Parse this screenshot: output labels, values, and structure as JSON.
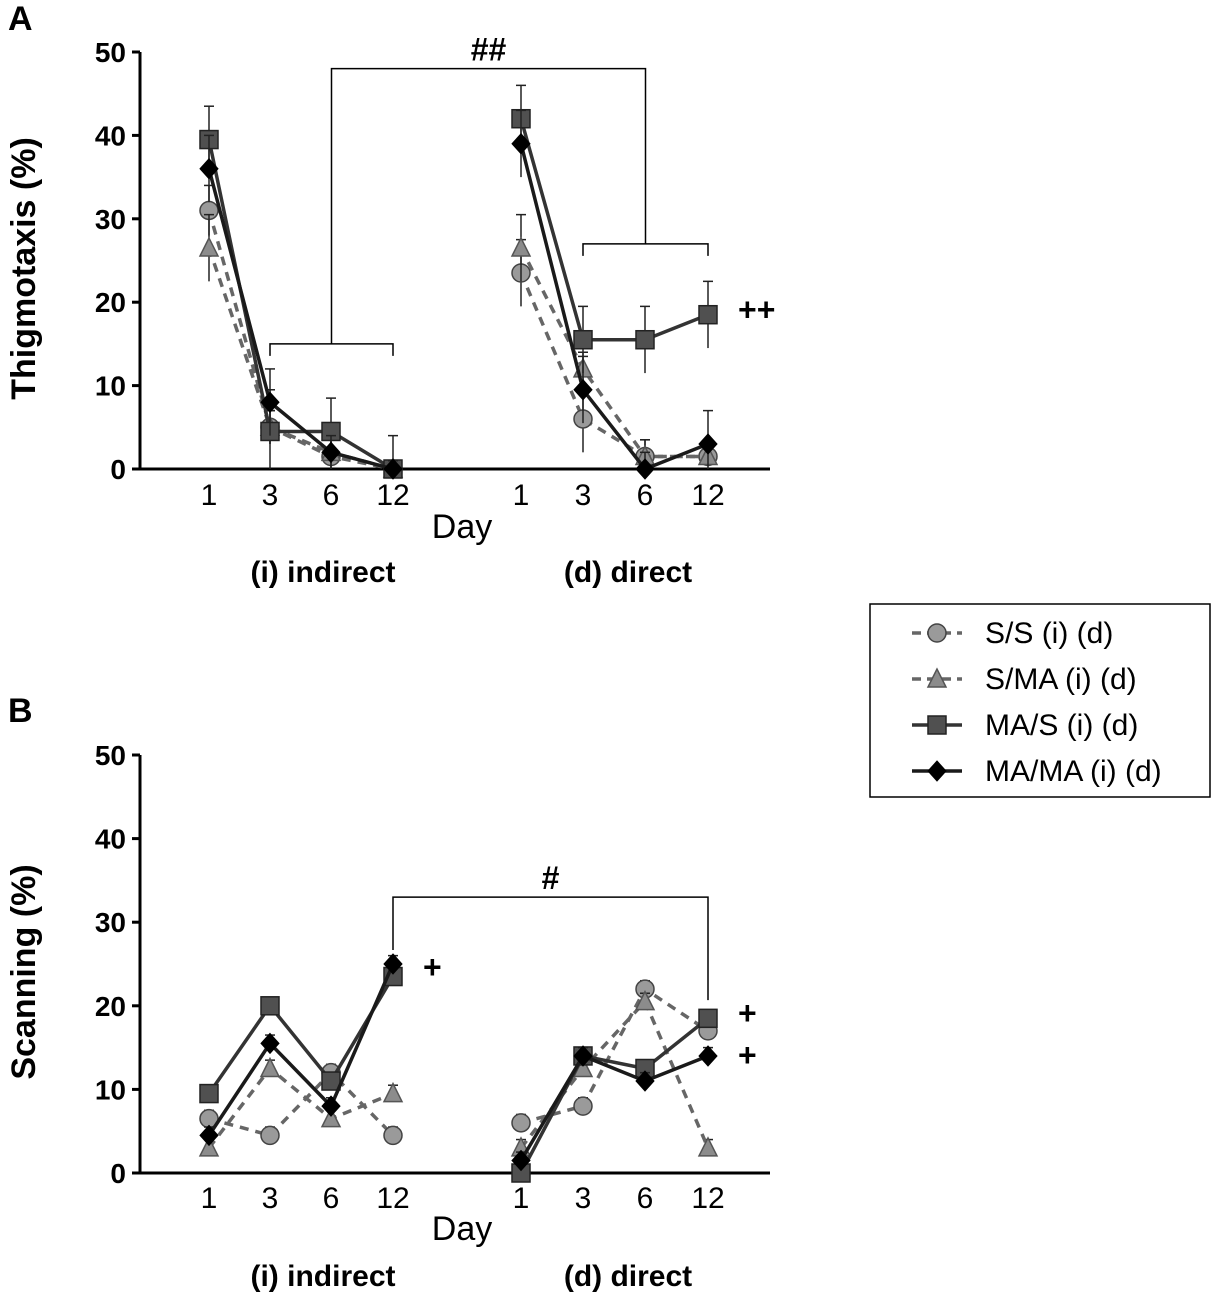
{
  "legend": {
    "entries": [
      {
        "key": "ss",
        "label": "S/S (i) (d)",
        "marker": "circle",
        "dashed": true
      },
      {
        "key": "sma",
        "label": "S/MA (i) (d)",
        "marker": "triangle",
        "dashed": true
      },
      {
        "key": "mas",
        "label": "MA/S (i) (d)",
        "marker": "square",
        "dashed": false
      },
      {
        "key": "mama",
        "label": "MA/MA (i) (d)",
        "marker": "diamond",
        "dashed": false
      }
    ]
  },
  "colors": {
    "axis": "#000000",
    "ss_line": "#666666",
    "ss_fill": "#9a9a9a",
    "sma_line": "#666666",
    "sma_fill": "#8c8c8c",
    "mas_line": "#333333",
    "mas_fill": "#505050",
    "mama_line": "#1a1a1a",
    "mama_fill": "#000000"
  },
  "chart_data": [
    {
      "panel_label": "A",
      "type": "line",
      "ylabel": "Thigmotaxis (%)",
      "xlabel": "Day",
      "ylim": [
        0,
        50
      ],
      "yticks": [
        0,
        10,
        20,
        30,
        40,
        50
      ],
      "categories": [
        "1",
        "3",
        "6",
        "12"
      ],
      "groups": [
        "(i) indirect",
        "(d) direct"
      ],
      "series": [
        {
          "name": "S/S",
          "indirect": [
            31,
            5,
            1.5,
            0
          ],
          "direct": [
            23.5,
            6,
            1.5,
            1.5
          ],
          "indirect_err": [
            3,
            2,
            2,
            1
          ],
          "direct_err": [
            4,
            4,
            2,
            1
          ]
        },
        {
          "name": "S/MA",
          "indirect": [
            26.5,
            5,
            2,
            0
          ],
          "direct": [
            26.5,
            12,
            1.5,
            1.5
          ],
          "indirect_err": [
            4,
            2,
            2,
            1
          ],
          "direct_err": [
            4,
            2,
            2,
            1
          ]
        },
        {
          "name": "MA/S",
          "indirect": [
            39.5,
            4.5,
            4.5,
            0
          ],
          "direct": [
            42,
            15.5,
            15.5,
            18.5
          ],
          "indirect_err": [
            4,
            5,
            4,
            4
          ],
          "direct_err": [
            4,
            4,
            4,
            4
          ]
        },
        {
          "name": "MA/MA",
          "indirect": [
            36,
            8,
            2,
            0
          ],
          "direct": [
            39,
            9.5,
            0,
            3
          ],
          "indirect_err": [
            4,
            4,
            2,
            1
          ],
          "direct_err": [
            4,
            4,
            2,
            4
          ]
        }
      ],
      "annotations": [
        {
          "text": "##",
          "kind": "bracket-top",
          "from": "indirect-mid",
          "to": "direct-mid",
          "level": 48
        },
        {
          "text": "",
          "kind": "bracket",
          "group": "indirect",
          "from": 1,
          "to": 3,
          "level": 15
        },
        {
          "text": "",
          "kind": "bracket",
          "group": "direct",
          "from": 1,
          "to": 3,
          "level": 27
        },
        {
          "text": "++",
          "kind": "label",
          "group": "direct",
          "cat": 3,
          "y": 19
        }
      ]
    },
    {
      "panel_label": "B",
      "type": "line",
      "ylabel": "Scanning (%)",
      "xlabel": "Day",
      "ylim": [
        0,
        50
      ],
      "yticks": [
        0,
        10,
        20,
        30,
        40,
        50
      ],
      "categories": [
        "1",
        "3",
        "6",
        "12"
      ],
      "groups": [
        "(i) indirect",
        "(d) direct"
      ],
      "series": [
        {
          "name": "S/S",
          "indirect": [
            6.5,
            4.5,
            12,
            4.5
          ],
          "direct": [
            6,
            8,
            22,
            17
          ],
          "indirect_err": [
            1,
            1,
            1,
            1
          ],
          "direct_err": [
            1,
            1,
            1,
            1
          ]
        },
        {
          "name": "S/MA",
          "indirect": [
            3,
            12.5,
            6.5,
            9.5
          ],
          "direct": [
            3,
            12.5,
            20.5,
            3
          ],
          "indirect_err": [
            1,
            1,
            1,
            1
          ],
          "direct_err": [
            1,
            1,
            1,
            1
          ]
        },
        {
          "name": "MA/S",
          "indirect": [
            9.5,
            20,
            11,
            23.5
          ],
          "direct": [
            0,
            14,
            12.5,
            18.5
          ],
          "indirect_err": [
            1,
            1,
            1,
            1
          ],
          "direct_err": [
            1,
            1,
            1,
            1
          ]
        },
        {
          "name": "MA/MA",
          "indirect": [
            4.5,
            15.5,
            8,
            25
          ],
          "direct": [
            1.5,
            14,
            11,
            14
          ],
          "indirect_err": [
            1,
            1,
            1,
            1
          ],
          "direct_err": [
            1,
            1,
            1,
            1
          ]
        }
      ],
      "annotations": [
        {
          "text": "#",
          "kind": "bracket-top",
          "from": "indirect-3",
          "to": "direct-3",
          "level": 33
        },
        {
          "text": "+",
          "kind": "label",
          "group": "indirect",
          "cat": 3,
          "y": 24.5
        },
        {
          "text": "+",
          "kind": "label",
          "group": "direct",
          "cat": 3,
          "y": 19
        },
        {
          "text": "+",
          "kind": "label",
          "group": "direct",
          "cat": 3,
          "y": 14
        }
      ]
    }
  ]
}
